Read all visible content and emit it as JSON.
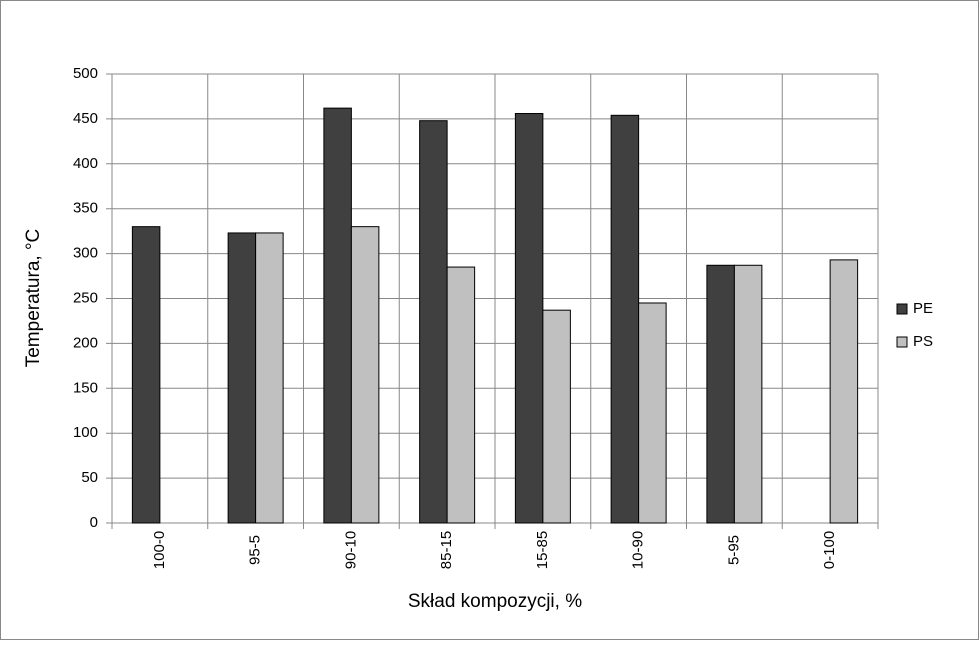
{
  "chart_data": {
    "type": "bar",
    "x_label": "Skład kompozycji, %",
    "y_label": "Temperatura, °C",
    "categories": [
      "100-0",
      "95-5",
      "90-10",
      "85-15",
      "15-85",
      "10-90",
      "5-95",
      "0-100"
    ],
    "series": [
      {
        "name": "PE",
        "color": "#404040",
        "values": [
          330,
          323,
          462,
          448,
          456,
          454,
          287,
          null
        ]
      },
      {
        "name": "PS",
        "color": "#c0c0c0",
        "values": [
          null,
          323,
          330,
          285,
          237,
          245,
          287,
          293
        ]
      }
    ],
    "ylim": [
      0,
      500
    ],
    "yticks": [
      0,
      50,
      100,
      150,
      200,
      250,
      300,
      350,
      400,
      450,
      500
    ],
    "grid": true,
    "legend": "right"
  }
}
